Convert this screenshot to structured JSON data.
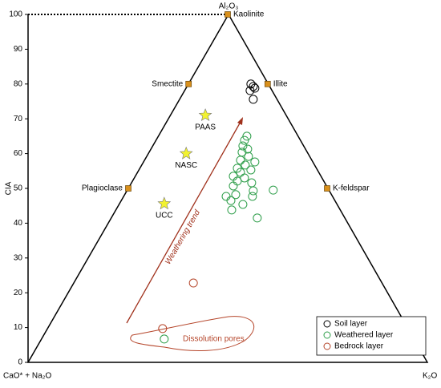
{
  "chart_data": {
    "type": "scatter",
    "ylabel": "CIA",
    "corners": {
      "top": "Al₂O₃",
      "left": "CaO* + Na₂O",
      "right": "K₂O"
    },
    "xlim": [
      0,
      100
    ],
    "ylim": [
      0,
      100
    ],
    "yticks": [
      0,
      10,
      20,
      30,
      40,
      50,
      60,
      70,
      80,
      90,
      100
    ],
    "series": [
      {
        "name": "Soil layer",
        "color": "#000000",
        "x": [
          55.8,
          56.4,
          55.6,
          56.8,
          56.4
        ],
        "values": [
          80,
          79.3,
          78.1,
          78.8,
          75.6
        ]
      },
      {
        "name": "Weathered layer",
        "color": "#2e9e4a",
        "x": [
          54.8,
          54.2,
          53.8,
          55,
          53.6,
          55.2,
          53.2,
          56.8,
          54.4,
          52.4,
          55.8,
          53.2,
          51.4,
          54.2,
          52.4,
          56,
          51.4,
          61.4,
          56.4,
          52,
          49.6,
          56.2,
          50.8,
          53.8,
          51,
          57.4,
          34.1
        ],
        "values": [
          65,
          63.8,
          62.2,
          61.3,
          60.4,
          59.2,
          58.1,
          57.6,
          56.7,
          55.8,
          55.3,
          54.6,
          53.5,
          53,
          52.1,
          51.6,
          50.7,
          49.5,
          49.3,
          48.2,
          47.7,
          47.7,
          46.5,
          45.4,
          43.8,
          41.5,
          6.7
        ]
      },
      {
        "name": "Bedrock layer",
        "color": "#b5452a",
        "x": [
          41.4,
          33.7
        ],
        "values": [
          22.8,
          9.7
        ]
      }
    ],
    "minerals": {
      "names": [
        "Kaolinite",
        "Smectite",
        "Illite",
        "Plagioclase",
        "K-feldspar"
      ],
      "x": [
        50,
        40.2,
        60,
        25.1,
        74.9
      ],
      "values": [
        100,
        80,
        80,
        50,
        50
      ],
      "color": "#d9901c"
    },
    "standards": {
      "names": [
        "PAAS",
        "NASC",
        "UCC"
      ],
      "x": [
        44.4,
        39.6,
        34.1
      ],
      "values": [
        71,
        60,
        45.6
      ],
      "color": "#f2f230"
    },
    "annotations": [
      "Weathering trend",
      "Dissolution pores"
    ],
    "legend": "lower right"
  }
}
